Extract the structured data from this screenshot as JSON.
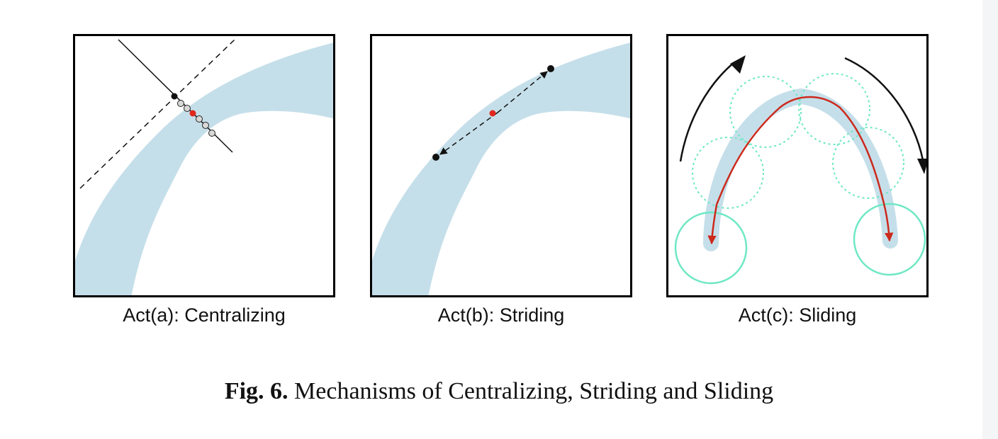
{
  "figure": {
    "panels": [
      {
        "label": "Act(a): Centralizing"
      },
      {
        "label": "Act(b): Striding"
      },
      {
        "label": "Act(c): Sliding"
      }
    ],
    "caption": {
      "prefix": "Fig. 6.",
      "text": "Mechanisms of Centralizing, Striding and Sliding"
    }
  },
  "colors": {
    "vessel": "#c5dfea",
    "center_point": "#e0281f",
    "path_arrow": "#cc2a1c",
    "circle": "#6ee8c4",
    "frame": "#000000"
  }
}
